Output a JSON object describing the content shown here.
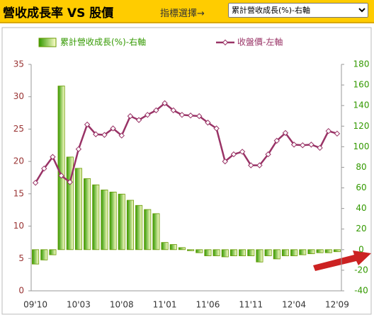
{
  "header": {
    "title": "營收成長率 VS 股價",
    "selector_label": "指標選擇→",
    "selected": "累計營收成長(%)-右軸"
  },
  "chart_data": {
    "type": "combo",
    "categories": [
      "09'10",
      null,
      null,
      null,
      null,
      "10'03",
      null,
      null,
      null,
      null,
      "10'08",
      null,
      null,
      null,
      null,
      "11'01",
      null,
      null,
      null,
      null,
      "11'06",
      null,
      null,
      null,
      null,
      "11'11",
      null,
      null,
      null,
      null,
      "12'04",
      null,
      null,
      null,
      null,
      "12'09"
    ],
    "series": [
      {
        "name": "累計營收成長(%)-右軸",
        "type": "bar",
        "axis": "y2",
        "color": "#339900",
        "values": [
          -14,
          -10,
          -5,
          159,
          90,
          79,
          69,
          63,
          58,
          56,
          54,
          48,
          43,
          39,
          35,
          7,
          5,
          2,
          -1,
          -3,
          -6,
          -6,
          -7,
          -6,
          -6,
          -6,
          -12,
          -6,
          -9,
          -6,
          -6,
          -5,
          -4,
          -3,
          -3,
          -2
        ]
      },
      {
        "name": "收盤價-左軸",
        "type": "line",
        "color": "#993366",
        "values": [
          16.7,
          18.9,
          20.7,
          17.8,
          16.8,
          21.9,
          25.7,
          24.2,
          24.1,
          25.1,
          24.0,
          27.0,
          26.4,
          27.2,
          27.9,
          29.0,
          27.9,
          27.2,
          27.1,
          27.0,
          26.0,
          25.1,
          20.0,
          21.1,
          21.5,
          19.4,
          19.4,
          21.1,
          23.2,
          24.4,
          22.6,
          22.5,
          22.6,
          22.1,
          24.7,
          24.3
        ]
      }
    ],
    "ylim": [
      0,
      35
    ],
    "yticks": [
      0,
      5,
      10,
      15,
      20,
      25,
      30,
      35
    ],
    "ycolor": "#993333",
    "y2lim": [
      -40,
      180
    ],
    "y2ticks": [
      -40,
      -20,
      0,
      20,
      40,
      60,
      80,
      100,
      120,
      140,
      160,
      180
    ],
    "y2color": "#339900",
    "legend": "top"
  }
}
